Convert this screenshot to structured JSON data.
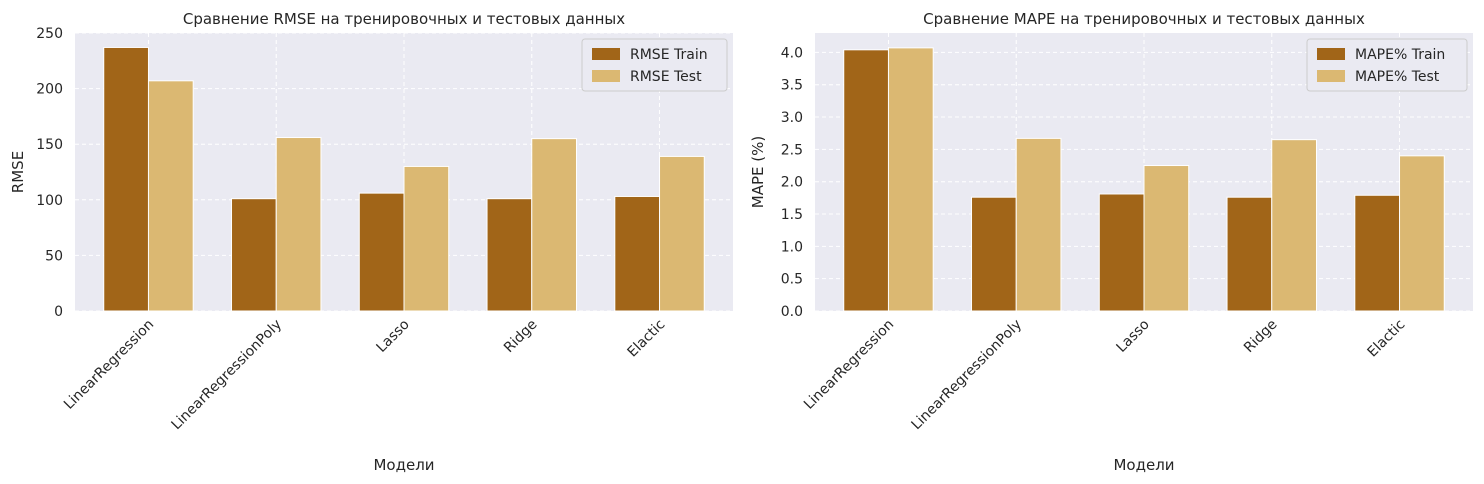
{
  "chart_data": [
    {
      "type": "bar",
      "title": "Сравнение RMSE на тренировочных и тестовых данных",
      "xlabel": "Модели",
      "ylabel": "RMSE",
      "categories": [
        "LinearRegression",
        "LinearRegressionPoly",
        "Lasso",
        "Ridge",
        "Elactic"
      ],
      "ylim": [
        0,
        250
      ],
      "yticks": [
        0,
        50,
        100,
        150,
        200,
        250
      ],
      "ytick_labels": [
        "0",
        "50",
        "100",
        "150",
        "200",
        "250"
      ],
      "grid": true,
      "legend_position": "top-right",
      "series": [
        {
          "name": "RMSE Train",
          "color": "#a16518",
          "values": [
            237,
            101,
            106,
            101,
            103
          ]
        },
        {
          "name": "RMSE Test",
          "color": "#dbb872",
          "values": [
            207,
            156,
            130,
            155,
            139
          ]
        }
      ]
    },
    {
      "type": "bar",
      "title": "Сравнение MAPE на тренировочных и тестовых данных",
      "xlabel": "Модели",
      "ylabel": "MAPE (%)",
      "categories": [
        "LinearRegression",
        "LinearRegressionPoly",
        "Lasso",
        "Ridge",
        "Elactic"
      ],
      "ylim": [
        0,
        4.3
      ],
      "yticks": [
        0,
        0.5,
        1.0,
        1.5,
        2.0,
        2.5,
        3.0,
        3.5,
        4.0
      ],
      "ytick_labels": [
        "0.0",
        "0.5",
        "1.0",
        "1.5",
        "2.0",
        "2.5",
        "3.0",
        "3.5",
        "4.0"
      ],
      "grid": true,
      "legend_position": "top-right",
      "series": [
        {
          "name": "MAPE% Train",
          "color": "#a16518",
          "values": [
            4.04,
            1.76,
            1.81,
            1.76,
            1.79
          ]
        },
        {
          "name": "MAPE% Test",
          "color": "#dbb872",
          "values": [
            4.07,
            2.67,
            2.25,
            2.65,
            2.4
          ]
        }
      ]
    }
  ]
}
